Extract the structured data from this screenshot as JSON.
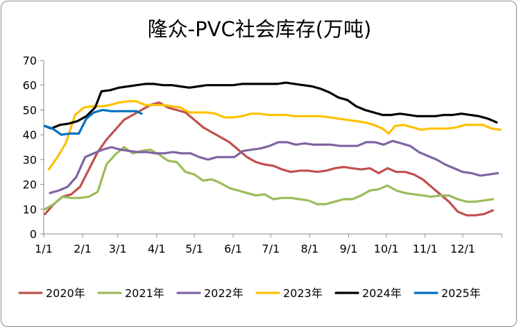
{
  "chart_data": {
    "type": "line",
    "title": "隆众-PVC社会库存(万吨)",
    "xlabel": "",
    "ylabel": "",
    "ylim": [
      0,
      70
    ],
    "yticks": [
      0,
      10,
      20,
      30,
      40,
      50,
      60,
      70
    ],
    "xlim": [
      0,
      365
    ],
    "categories": [
      "1/1",
      "2/1",
      "3/1",
      "4/1",
      "5/1",
      "6/1",
      "7/1",
      "8/1",
      "9/1",
      "10/1",
      "11/1",
      "12/1"
    ],
    "category_days": [
      0,
      31,
      59,
      90,
      120,
      151,
      181,
      212,
      243,
      273,
      304,
      334
    ],
    "legend_position": "bottom",
    "grid": false,
    "series": [
      {
        "name": "2020年",
        "color": "#c0504d",
        "points": [
          [
            1,
            8
          ],
          [
            8,
            12
          ],
          [
            15,
            15
          ],
          [
            22,
            16
          ],
          [
            29,
            19
          ],
          [
            36,
            26
          ],
          [
            43,
            33
          ],
          [
            50,
            38
          ],
          [
            57,
            42
          ],
          [
            64,
            46
          ],
          [
            71,
            48
          ],
          [
            78,
            50
          ],
          [
            85,
            52
          ],
          [
            92,
            53
          ],
          [
            99,
            51
          ],
          [
            106,
            50
          ],
          [
            113,
            49
          ],
          [
            120,
            46
          ],
          [
            127,
            43
          ],
          [
            134,
            41
          ],
          [
            141,
            39
          ],
          [
            148,
            37
          ],
          [
            155,
            34
          ],
          [
            162,
            31
          ],
          [
            169,
            29
          ],
          [
            176,
            28
          ],
          [
            183,
            27.5
          ],
          [
            190,
            26
          ],
          [
            197,
            25
          ],
          [
            204,
            25.5
          ],
          [
            211,
            25.5
          ],
          [
            218,
            25
          ],
          [
            225,
            25.5
          ],
          [
            232,
            26.5
          ],
          [
            239,
            27
          ],
          [
            246,
            26.5
          ],
          [
            253,
            26
          ],
          [
            260,
            26.5
          ],
          [
            267,
            24.5
          ],
          [
            274,
            26.5
          ],
          [
            281,
            25
          ],
          [
            288,
            25
          ],
          [
            295,
            24
          ],
          [
            302,
            22
          ],
          [
            309,
            19
          ],
          [
            316,
            16
          ],
          [
            323,
            13
          ],
          [
            330,
            9
          ],
          [
            337,
            7.5
          ],
          [
            344,
            7.5
          ],
          [
            351,
            8
          ],
          [
            358,
            9.5
          ]
        ]
      },
      {
        "name": "2021年",
        "color": "#9bbb59",
        "points": [
          [
            1,
            10
          ],
          [
            8,
            12
          ],
          [
            15,
            15
          ],
          [
            22,
            14.5
          ],
          [
            29,
            14.5
          ],
          [
            36,
            15
          ],
          [
            43,
            17
          ],
          [
            50,
            28
          ],
          [
            57,
            32
          ],
          [
            64,
            35
          ],
          [
            71,
            32.5
          ],
          [
            78,
            33.5
          ],
          [
            85,
            34
          ],
          [
            92,
            32
          ],
          [
            99,
            29.5
          ],
          [
            106,
            29
          ],
          [
            113,
            25
          ],
          [
            120,
            24
          ],
          [
            127,
            21.5
          ],
          [
            134,
            22
          ],
          [
            141,
            20.5
          ],
          [
            148,
            18.5
          ],
          [
            155,
            17.5
          ],
          [
            162,
            16.5
          ],
          [
            169,
            15.5
          ],
          [
            176,
            16
          ],
          [
            183,
            14
          ],
          [
            190,
            14.5
          ],
          [
            197,
            14.5
          ],
          [
            204,
            14
          ],
          [
            211,
            13.5
          ],
          [
            218,
            12
          ],
          [
            225,
            12
          ],
          [
            232,
            13
          ],
          [
            239,
            14
          ],
          [
            246,
            14
          ],
          [
            253,
            15.5
          ],
          [
            260,
            17.5
          ],
          [
            267,
            18
          ],
          [
            274,
            19.5
          ],
          [
            281,
            17.5
          ],
          [
            288,
            16.5
          ],
          [
            295,
            16
          ],
          [
            302,
            15.5
          ],
          [
            309,
            15
          ],
          [
            316,
            15.5
          ],
          [
            323,
            15.5
          ],
          [
            330,
            14
          ],
          [
            337,
            13
          ],
          [
            344,
            13
          ],
          [
            351,
            13.5
          ],
          [
            358,
            14
          ]
        ]
      },
      {
        "name": "2022年",
        "color": "#8064a2",
        "points": [
          [
            5,
            16.5
          ],
          [
            12,
            17.5
          ],
          [
            19,
            19
          ],
          [
            26,
            23
          ],
          [
            33,
            31
          ],
          [
            40,
            32.5
          ],
          [
            47,
            34
          ],
          [
            54,
            35
          ],
          [
            61,
            34
          ],
          [
            68,
            33.5
          ],
          [
            75,
            33
          ],
          [
            82,
            33
          ],
          [
            89,
            32.5
          ],
          [
            96,
            32.5
          ],
          [
            103,
            33
          ],
          [
            110,
            32.5
          ],
          [
            117,
            32.5
          ],
          [
            124,
            31
          ],
          [
            131,
            30
          ],
          [
            138,
            31
          ],
          [
            145,
            31
          ],
          [
            152,
            31
          ],
          [
            159,
            33.5
          ],
          [
            166,
            34
          ],
          [
            173,
            34.5
          ],
          [
            180,
            35.5
          ],
          [
            187,
            37
          ],
          [
            194,
            37
          ],
          [
            201,
            36
          ],
          [
            208,
            36.5
          ],
          [
            215,
            36
          ],
          [
            222,
            36
          ],
          [
            229,
            36
          ],
          [
            236,
            35.5
          ],
          [
            243,
            35.5
          ],
          [
            250,
            35.5
          ],
          [
            257,
            37
          ],
          [
            264,
            37
          ],
          [
            271,
            36
          ],
          [
            278,
            37.5
          ],
          [
            285,
            36.5
          ],
          [
            292,
            35.5
          ],
          [
            299,
            33
          ],
          [
            306,
            31.5
          ],
          [
            313,
            30
          ],
          [
            320,
            28
          ],
          [
            327,
            26.5
          ],
          [
            334,
            25
          ],
          [
            341,
            24.5
          ],
          [
            348,
            23.5
          ],
          [
            355,
            24
          ],
          [
            362,
            24.5
          ]
        ]
      },
      {
        "name": "2023年",
        "color": "#ffc000",
        "points": [
          [
            4,
            26
          ],
          [
            11,
            31
          ],
          [
            18,
            37
          ],
          [
            25,
            48
          ],
          [
            32,
            51
          ],
          [
            39,
            51.5
          ],
          [
            46,
            51.5
          ],
          [
            53,
            52
          ],
          [
            60,
            53
          ],
          [
            67,
            53.5
          ],
          [
            74,
            53.5
          ],
          [
            81,
            52
          ],
          [
            88,
            52
          ],
          [
            95,
            52
          ],
          [
            102,
            51.5
          ],
          [
            109,
            51
          ],
          [
            116,
            49
          ],
          [
            123,
            49
          ],
          [
            130,
            49
          ],
          [
            137,
            48.5
          ],
          [
            144,
            47
          ],
          [
            151,
            47
          ],
          [
            158,
            47.5
          ],
          [
            165,
            48.5
          ],
          [
            172,
            48.5
          ],
          [
            179,
            48
          ],
          [
            186,
            48
          ],
          [
            193,
            48
          ],
          [
            200,
            47.5
          ],
          [
            207,
            47.5
          ],
          [
            214,
            47.5
          ],
          [
            221,
            47.5
          ],
          [
            228,
            47
          ],
          [
            235,
            46.5
          ],
          [
            242,
            46
          ],
          [
            249,
            45.5
          ],
          [
            256,
            45
          ],
          [
            263,
            44
          ],
          [
            270,
            42.5
          ],
          [
            275,
            40.5
          ],
          [
            280,
            43.5
          ],
          [
            287,
            44
          ],
          [
            294,
            43
          ],
          [
            301,
            42
          ],
          [
            308,
            42.5
          ],
          [
            315,
            42.5
          ],
          [
            322,
            42.5
          ],
          [
            329,
            43
          ],
          [
            336,
            44
          ],
          [
            343,
            44
          ],
          [
            350,
            44
          ],
          [
            357,
            42.5
          ],
          [
            364,
            42
          ]
        ]
      },
      {
        "name": "2024年",
        "color": "#000000",
        "points": [
          [
            1,
            43.5
          ],
          [
            6,
            42.5
          ],
          [
            13,
            44
          ],
          [
            20,
            44.5
          ],
          [
            27,
            45.5
          ],
          [
            34,
            47.5
          ],
          [
            41,
            51
          ],
          [
            46,
            57.5
          ],
          [
            53,
            58
          ],
          [
            60,
            59
          ],
          [
            67,
            59.5
          ],
          [
            74,
            60
          ],
          [
            81,
            60.5
          ],
          [
            88,
            60.5
          ],
          [
            95,
            60
          ],
          [
            102,
            60
          ],
          [
            109,
            59.5
          ],
          [
            116,
            59
          ],
          [
            123,
            59.5
          ],
          [
            130,
            60
          ],
          [
            137,
            60
          ],
          [
            144,
            60
          ],
          [
            151,
            60
          ],
          [
            158,
            60.5
          ],
          [
            165,
            60.5
          ],
          [
            172,
            60.5
          ],
          [
            179,
            60.5
          ],
          [
            186,
            60.5
          ],
          [
            193,
            61
          ],
          [
            200,
            60.5
          ],
          [
            207,
            60
          ],
          [
            214,
            59.5
          ],
          [
            221,
            58.5
          ],
          [
            228,
            57
          ],
          [
            235,
            55
          ],
          [
            242,
            54
          ],
          [
            249,
            51.5
          ],
          [
            256,
            50
          ],
          [
            263,
            49
          ],
          [
            270,
            48
          ],
          [
            277,
            48
          ],
          [
            284,
            48.5
          ],
          [
            291,
            48
          ],
          [
            298,
            47.5
          ],
          [
            305,
            47.5
          ],
          [
            312,
            47.5
          ],
          [
            319,
            48
          ],
          [
            326,
            48
          ],
          [
            333,
            48.5
          ],
          [
            340,
            48
          ],
          [
            347,
            47.5
          ],
          [
            354,
            46.5
          ],
          [
            361,
            45
          ]
        ]
      },
      {
        "name": "2025年",
        "color": "#0070c0",
        "points": [
          [
            1,
            43.5
          ],
          [
            7,
            42.5
          ],
          [
            14,
            40
          ],
          [
            21,
            40.5
          ],
          [
            28,
            40.5
          ],
          [
            34,
            46.5
          ],
          [
            40,
            49
          ],
          [
            47,
            50
          ],
          [
            54,
            49.5
          ],
          [
            61,
            49.5
          ],
          [
            68,
            49.5
          ],
          [
            74,
            49.5
          ],
          [
            78,
            48.5
          ]
        ]
      }
    ]
  }
}
